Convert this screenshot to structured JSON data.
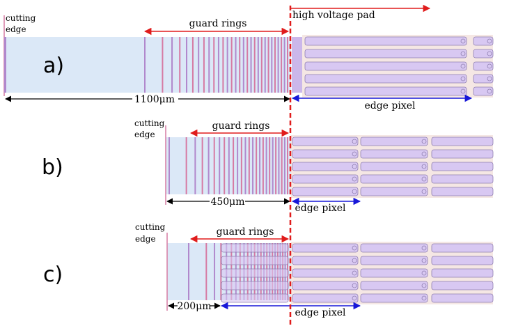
{
  "colors": {
    "substrate": "#dbe8f7",
    "ring_purple": "#b188cc",
    "ring_pink": "#d67aa3",
    "pixel_bg": "#f5e7e4",
    "pixel_fill": "#d8c8f2",
    "pixel_stroke": "#8f7fb0",
    "red": "#e01c1c",
    "blue": "#1717d8",
    "black": "#000000"
  },
  "header": {
    "hv_pad_label": "high voltage pad"
  },
  "panels": [
    {
      "letter": "a)",
      "cutting_edge_label": [
        "cutting",
        "edge"
      ],
      "guard_rings_label": "guard rings",
      "dimension_label": "1100μm",
      "edge_pixel_label": "edge pixel"
    },
    {
      "letter": "b)",
      "cutting_edge_label": [
        "cutting",
        "edge"
      ],
      "guard_rings_label": "guard rings",
      "dimension_label": "450μm",
      "edge_pixel_label": "edge pixel"
    },
    {
      "letter": "c)",
      "cutting_edge_label": [
        "cutting",
        "edge"
      ],
      "guard_rings_label": "guard rings",
      "dimension_label": "200μm",
      "edge_pixel_label": "edge pixel"
    }
  ]
}
